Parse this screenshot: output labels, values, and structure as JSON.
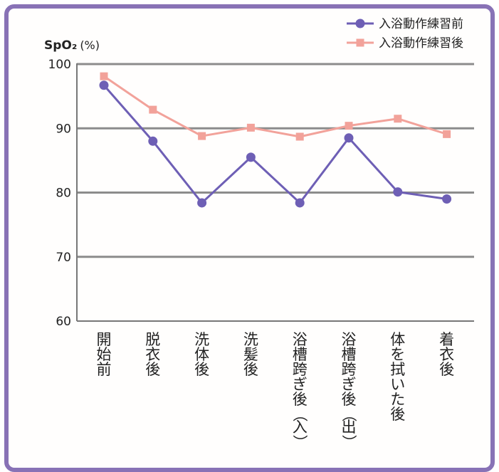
{
  "chart_data": {
    "type": "line",
    "ylabel": "SpO₂",
    "yunit": "(%)",
    "ylim": [
      60,
      100
    ],
    "yticks": [
      100,
      90,
      80,
      70,
      60
    ],
    "grid": true,
    "legend_position": "top-right",
    "categories": [
      "開始前",
      "脱衣後",
      "洗体後",
      "洗髪後",
      "浴槽跨ぎ後（入）",
      "浴槽跨ぎ後（出）",
      "体を拭いた後",
      "着衣後"
    ],
    "series": [
      {
        "name": "入浴動作練習前",
        "color": "#6e5fb5",
        "marker": "circle",
        "values": [
          96.7,
          88.0,
          78.4,
          85.5,
          78.4,
          88.5,
          80.1,
          79.0
        ]
      },
      {
        "name": "入浴動作練習後",
        "color": "#f2a29a",
        "marker": "square",
        "values": [
          98.1,
          92.9,
          88.8,
          90.1,
          88.7,
          90.4,
          91.5,
          89.1
        ]
      }
    ]
  }
}
